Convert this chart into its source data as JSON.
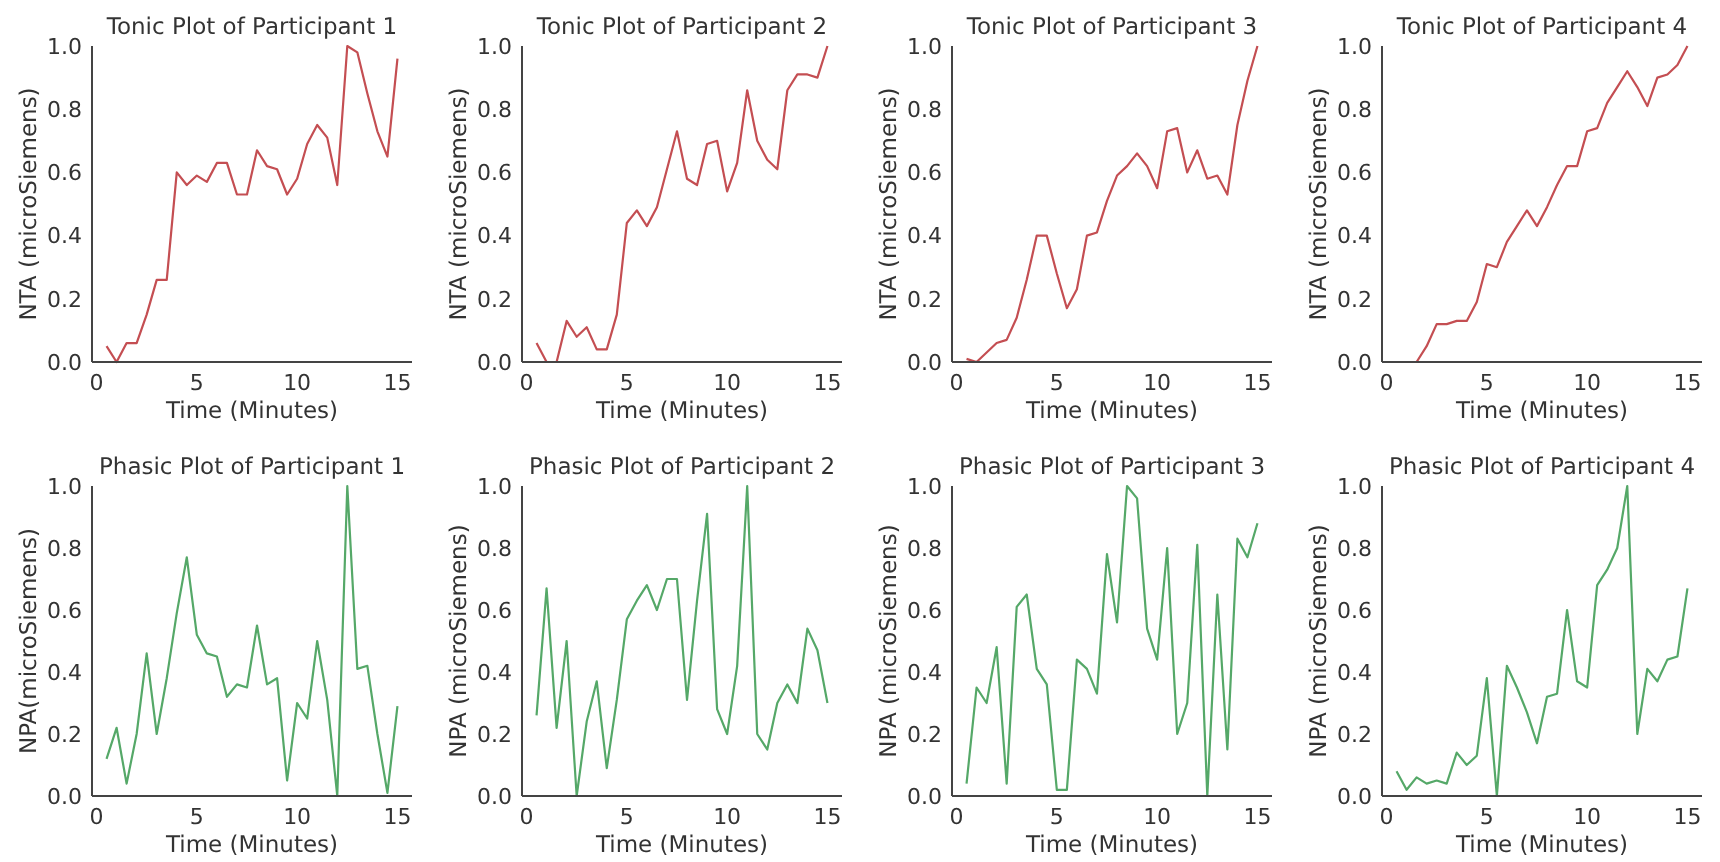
{
  "chart_data": [
    {
      "type": "line",
      "title": "Tonic Plot of Participant 1",
      "xlabel": "Time (Minutes)",
      "ylabel": "NTA (microSiemens)",
      "color": "#c44e52",
      "x": [
        0.5,
        1,
        1.5,
        2,
        2.5,
        3,
        3.5,
        4,
        4.5,
        5,
        5.5,
        6,
        6.5,
        7,
        7.5,
        8,
        8.5,
        9,
        9.5,
        10,
        10.5,
        11,
        11.5,
        12,
        12.5,
        13,
        13.5,
        14,
        14.5,
        15
      ],
      "values": [
        0.05,
        0.0,
        0.06,
        0.06,
        0.15,
        0.26,
        0.26,
        0.6,
        0.56,
        0.59,
        0.57,
        0.63,
        0.63,
        0.53,
        0.53,
        0.67,
        0.62,
        0.61,
        0.53,
        0.58,
        0.69,
        0.75,
        0.71,
        0.56,
        1.0,
        0.98,
        0.85,
        0.73,
        0.65,
        0.96
      ],
      "xlim": [
        -0.225,
        15.725
      ],
      "ylim": [
        0,
        1
      ],
      "xticks": [
        0,
        5,
        10,
        15
      ],
      "yticks": [
        {
          "value": 0,
          "label": "0.0"
        },
        {
          "value": 0.2,
          "label": "0.2"
        },
        {
          "value": 0.4,
          "label": "0.4"
        },
        {
          "value": 0.6,
          "label": "0.6"
        },
        {
          "value": 0.8,
          "label": "0.8"
        },
        {
          "value": 1,
          "label": "1.0"
        }
      ]
    },
    {
      "type": "line",
      "title": "Tonic Plot of Participant 2",
      "xlabel": "Time (Minutes)",
      "ylabel": "NTA (microSiemens)",
      "color": "#c44e52",
      "x": [
        0.5,
        1,
        1.5,
        2,
        2.5,
        3,
        3.5,
        4,
        4.5,
        5,
        5.5,
        6,
        6.5,
        7,
        7.5,
        8,
        8.5,
        9,
        9.5,
        10,
        10.5,
        11,
        11.5,
        12,
        12.5,
        13,
        13.5,
        14,
        14.5,
        15
      ],
      "values": [
        0.06,
        0.0,
        0.0,
        0.13,
        0.08,
        0.11,
        0.04,
        0.04,
        0.15,
        0.44,
        0.48,
        0.43,
        0.49,
        0.61,
        0.73,
        0.58,
        0.56,
        0.69,
        0.7,
        0.54,
        0.63,
        0.86,
        0.7,
        0.64,
        0.61,
        0.86,
        0.91,
        0.91,
        0.9,
        1.0
      ],
      "xlim": [
        -0.225,
        15.725
      ],
      "ylim": [
        0,
        1
      ],
      "xticks": [
        0,
        5,
        10,
        15
      ],
      "yticks": [
        {
          "value": 0,
          "label": "0.0"
        },
        {
          "value": 0.2,
          "label": "0.2"
        },
        {
          "value": 0.4,
          "label": "0.4"
        },
        {
          "value": 0.6,
          "label": "0.6"
        },
        {
          "value": 0.8,
          "label": "0.8"
        },
        {
          "value": 1,
          "label": "1.0"
        }
      ]
    },
    {
      "type": "line",
      "title": "Tonic Plot of Participant 3",
      "xlabel": "Time (Minutes)",
      "ylabel": "NTA (microSiemens)",
      "color": "#c44e52",
      "x": [
        0.5,
        1,
        1.5,
        2,
        2.5,
        3,
        3.5,
        4,
        4.5,
        5,
        5.5,
        6,
        6.5,
        7,
        7.5,
        8,
        8.5,
        9,
        9.5,
        10,
        10.5,
        11,
        11.5,
        12,
        12.5,
        13,
        13.5,
        14,
        14.5,
        15
      ],
      "values": [
        0.01,
        0.0,
        0.03,
        0.06,
        0.07,
        0.14,
        0.26,
        0.4,
        0.4,
        0.28,
        0.17,
        0.23,
        0.4,
        0.41,
        0.51,
        0.59,
        0.62,
        0.66,
        0.62,
        0.55,
        0.73,
        0.74,
        0.6,
        0.67,
        0.58,
        0.59,
        0.53,
        0.75,
        0.89,
        1.0
      ],
      "xlim": [
        -0.225,
        15.725
      ],
      "ylim": [
        0,
        1
      ],
      "xticks": [
        0,
        5,
        10,
        15
      ],
      "yticks": [
        {
          "value": 0,
          "label": "0.0"
        },
        {
          "value": 0.2,
          "label": "0.2"
        },
        {
          "value": 0.4,
          "label": "0.4"
        },
        {
          "value": 0.6,
          "label": "0.6"
        },
        {
          "value": 0.8,
          "label": "0.8"
        },
        {
          "value": 1,
          "label": "1.0"
        }
      ]
    },
    {
      "type": "line",
      "title": "Tonic Plot of Participant 4",
      "xlabel": "Time (Minutes)",
      "ylabel": "NTA (microSiemens)",
      "color": "#c44e52",
      "x": [
        0.5,
        1,
        1.5,
        2,
        2.5,
        3,
        3.5,
        4,
        4.5,
        5,
        5.5,
        6,
        6.5,
        7,
        7.5,
        8,
        8.5,
        9,
        9.5,
        10,
        10.5,
        11,
        11.5,
        12,
        12.5,
        13,
        13.5,
        14,
        14.5,
        15
      ],
      "values": [
        0.0,
        0.0,
        0.0,
        0.05,
        0.12,
        0.12,
        0.13,
        0.13,
        0.19,
        0.31,
        0.3,
        0.38,
        0.43,
        0.48,
        0.43,
        0.49,
        0.56,
        0.62,
        0.62,
        0.73,
        0.74,
        0.82,
        0.87,
        0.92,
        0.87,
        0.81,
        0.9,
        0.91,
        0.94,
        1.0
      ],
      "xlim": [
        -0.225,
        15.725
      ],
      "ylim": [
        0,
        1
      ],
      "xticks": [
        0,
        5,
        10,
        15
      ],
      "yticks": [
        {
          "value": 0,
          "label": "0.0"
        },
        {
          "value": 0.2,
          "label": "0.2"
        },
        {
          "value": 0.4,
          "label": "0.4"
        },
        {
          "value": 0.6,
          "label": "0.6"
        },
        {
          "value": 0.8,
          "label": "0.8"
        },
        {
          "value": 1,
          "label": "1.0"
        }
      ]
    },
    {
      "type": "line",
      "title": "Phasic Plot of Participant 1",
      "xlabel": "Time (Minutes)",
      "ylabel": "NPA(microSiemens)",
      "color": "#55a868",
      "x": [
        0.5,
        1,
        1.5,
        2,
        2.5,
        3,
        3.5,
        4,
        4.5,
        5,
        5.5,
        6,
        6.5,
        7,
        7.5,
        8,
        8.5,
        9,
        9.5,
        10,
        10.5,
        11,
        11.5,
        12,
        12.5,
        13,
        13.5,
        14,
        14.5,
        15
      ],
      "values": [
        0.12,
        0.22,
        0.04,
        0.2,
        0.46,
        0.2,
        0.38,
        0.59,
        0.77,
        0.52,
        0.46,
        0.45,
        0.32,
        0.36,
        0.35,
        0.55,
        0.36,
        0.38,
        0.05,
        0.3,
        0.25,
        0.5,
        0.31,
        0.0,
        1.0,
        0.41,
        0.42,
        0.2,
        0.01,
        0.29
      ],
      "xlim": [
        -0.225,
        15.725
      ],
      "ylim": [
        0,
        1
      ],
      "xticks": [
        0,
        5,
        10,
        15
      ],
      "yticks": [
        {
          "value": 0,
          "label": "0.0"
        },
        {
          "value": 0.2,
          "label": "0.2"
        },
        {
          "value": 0.4,
          "label": "0.4"
        },
        {
          "value": 0.6,
          "label": "0.6"
        },
        {
          "value": 0.8,
          "label": "0.8"
        },
        {
          "value": 1,
          "label": "1.0"
        }
      ]
    },
    {
      "type": "line",
      "title": "Phasic Plot of Participant 2",
      "xlabel": "Time (Minutes)",
      "ylabel": "NPA (microSiemens)",
      "color": "#55a868",
      "x": [
        0.5,
        1,
        1.5,
        2,
        2.5,
        3,
        3.5,
        4,
        4.5,
        5,
        5.5,
        6,
        6.5,
        7,
        7.5,
        8,
        8.5,
        9,
        9.5,
        10,
        10.5,
        11,
        11.5,
        12,
        12.5,
        13,
        13.5,
        14,
        14.5,
        15
      ],
      "values": [
        0.26,
        0.67,
        0.22,
        0.5,
        0.0,
        0.24,
        0.37,
        0.09,
        0.31,
        0.57,
        0.63,
        0.68,
        0.6,
        0.7,
        0.7,
        0.31,
        0.63,
        0.91,
        0.28,
        0.2,
        0.42,
        1.0,
        0.2,
        0.15,
        0.3,
        0.36,
        0.3,
        0.54,
        0.47,
        0.3
      ],
      "xlim": [
        -0.225,
        15.725
      ],
      "ylim": [
        0,
        1
      ],
      "xticks": [
        0,
        5,
        10,
        15
      ],
      "yticks": [
        {
          "value": 0,
          "label": "0.0"
        },
        {
          "value": 0.2,
          "label": "0.2"
        },
        {
          "value": 0.4,
          "label": "0.4"
        },
        {
          "value": 0.6,
          "label": "0.6"
        },
        {
          "value": 0.8,
          "label": "0.8"
        },
        {
          "value": 1,
          "label": "1.0"
        }
      ]
    },
    {
      "type": "line",
      "title": "Phasic Plot of Participant 3",
      "xlabel": "Time (Minutes)",
      "ylabel": "NPA (microSiemens)",
      "color": "#55a868",
      "x": [
        0.5,
        1,
        1.5,
        2,
        2.5,
        3,
        3.5,
        4,
        4.5,
        5,
        5.5,
        6,
        6.5,
        7,
        7.5,
        8,
        8.5,
        9,
        9.5,
        10,
        10.5,
        11,
        11.5,
        12,
        12.5,
        13,
        13.5,
        14,
        14.5,
        15
      ],
      "values": [
        0.04,
        0.35,
        0.3,
        0.48,
        0.04,
        0.61,
        0.65,
        0.41,
        0.36,
        0.02,
        0.02,
        0.44,
        0.41,
        0.33,
        0.78,
        0.56,
        1.0,
        0.96,
        0.54,
        0.44,
        0.8,
        0.2,
        0.3,
        0.81,
        0.0,
        0.65,
        0.15,
        0.83,
        0.77,
        0.88
      ],
      "xlim": [
        -0.225,
        15.725
      ],
      "ylim": [
        0,
        1
      ],
      "xticks": [
        0,
        5,
        10,
        15
      ],
      "yticks": [
        {
          "value": 0,
          "label": "0.0"
        },
        {
          "value": 0.2,
          "label": "0.2"
        },
        {
          "value": 0.4,
          "label": "0.4"
        },
        {
          "value": 0.6,
          "label": "0.6"
        },
        {
          "value": 0.8,
          "label": "0.8"
        },
        {
          "value": 1,
          "label": "1.0"
        }
      ]
    },
    {
      "type": "line",
      "title": "Phasic Plot of Participant 4",
      "xlabel": "Time (Minutes)",
      "ylabel": "NPA (microSiemens)",
      "color": "#55a868",
      "x": [
        0.5,
        1,
        1.5,
        2,
        2.5,
        3,
        3.5,
        4,
        4.5,
        5,
        5.5,
        6,
        6.5,
        7,
        7.5,
        8,
        8.5,
        9,
        9.5,
        10,
        10.5,
        11,
        11.5,
        12,
        12.5,
        13,
        13.5,
        14,
        14.5,
        15
      ],
      "values": [
        0.08,
        0.02,
        0.06,
        0.04,
        0.05,
        0.04,
        0.14,
        0.1,
        0.13,
        0.38,
        0.0,
        0.42,
        0.35,
        0.27,
        0.17,
        0.32,
        0.33,
        0.6,
        0.37,
        0.35,
        0.68,
        0.73,
        0.8,
        1.0,
        0.2,
        0.41,
        0.37,
        0.44,
        0.45,
        0.67
      ],
      "xlim": [
        -0.225,
        15.725
      ],
      "ylim": [
        0,
        1
      ],
      "xticks": [
        0,
        5,
        10,
        15
      ],
      "yticks": [
        {
          "value": 0,
          "label": "0.0"
        },
        {
          "value": 0.2,
          "label": "0.2"
        },
        {
          "value": 0.4,
          "label": "0.4"
        },
        {
          "value": 0.6,
          "label": "0.6"
        },
        {
          "value": 0.8,
          "label": "0.8"
        },
        {
          "value": 1,
          "label": "1.0"
        }
      ]
    }
  ]
}
